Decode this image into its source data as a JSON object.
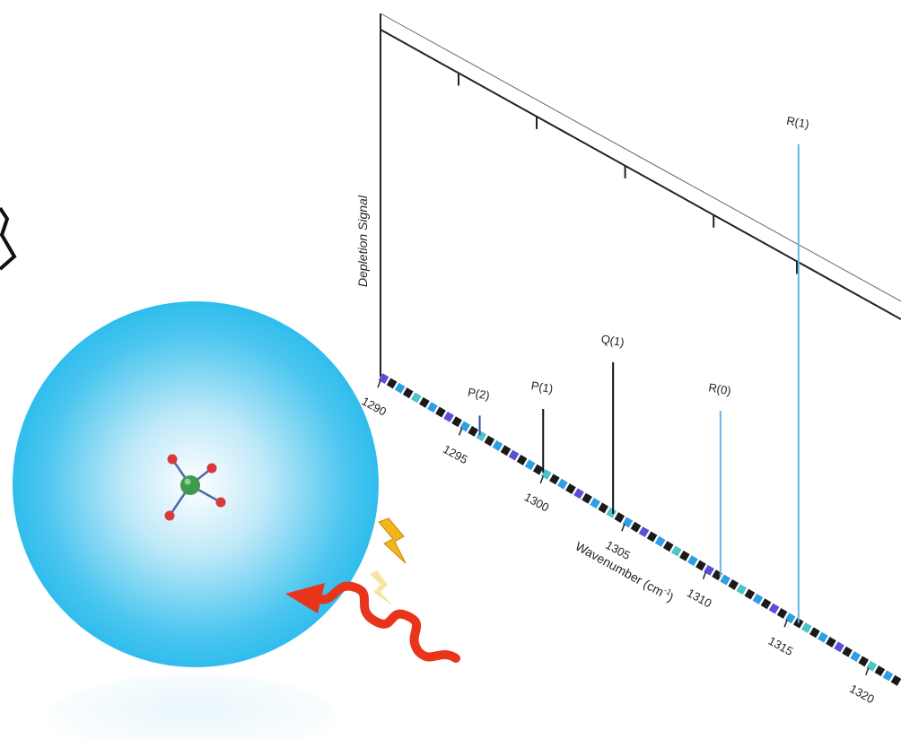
{
  "chart_data": {
    "type": "line",
    "ylabel": "Depletion Signal",
    "xlabel_main": "Wavenumber (cm",
    "xlabel_sup": "-1",
    "xlabel_close": ")",
    "xlim": [
      1290,
      1322
    ],
    "ylim": [
      0,
      1
    ],
    "x_ticks": [
      "1290",
      "1295",
      "1300",
      "1305",
      "1310",
      "1315",
      "1320"
    ],
    "grid": false,
    "peaks": [
      {
        "label": "P(2)",
        "x": 1296.1,
        "y": 0.04,
        "color": "#3344aa"
      },
      {
        "label": "P(1)",
        "x": 1300.0,
        "y": 0.13,
        "color": "#111111"
      },
      {
        "label": "Q(1)",
        "x": 1304.3,
        "y": 0.31,
        "color": "#111111"
      },
      {
        "label": "R(0)",
        "x": 1310.9,
        "y": 0.34,
        "color": "#6ab4e6"
      },
      {
        "label": "R(1)",
        "x": 1315.7,
        "y": 0.98,
        "color": "#6ab4e6"
      }
    ],
    "colors": {
      "baseline_dark": "#1a1a1a",
      "baseline_blue": "#2f9fe3",
      "baseline_cyan": "#4fc3c8",
      "baseline_purple": "#5a4fd6"
    }
  },
  "illustration": {
    "droplet_color": "#1fb7ec",
    "photon_color": "#e8341a",
    "spark_color": "#f2b51c",
    "molecule_center_color": "#3f9a4d",
    "molecule_atom_color": "#d8393b"
  }
}
